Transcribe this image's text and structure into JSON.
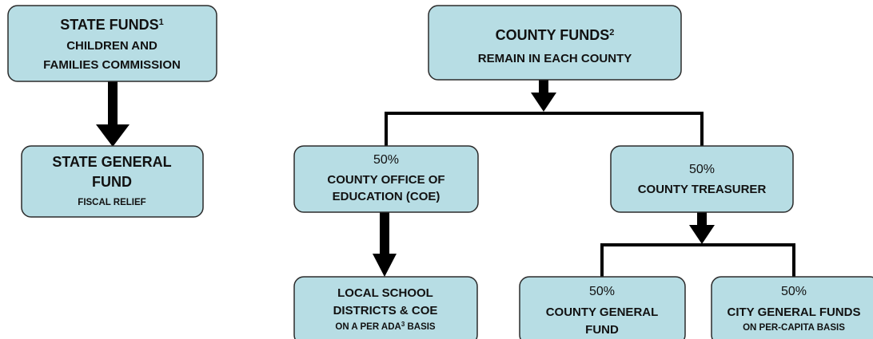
{
  "nodes": [
    {
      "lines": [
        {
          "text": "STATE FUNDS",
          "sup": "1"
        },
        {
          "text": "CHILDREN AND"
        },
        {
          "text": "FAMILIES COMMISSION"
        }
      ]
    },
    {
      "lines": [
        {
          "text": "STATE GENERAL"
        },
        {
          "text": "FUND"
        },
        {
          "text": "FISCAL RELIEF"
        }
      ]
    },
    {
      "lines": [
        {
          "text": "COUNTY FUNDS",
          "sup": "2"
        },
        {
          "text": "REMAIN IN EACH COUNTY"
        }
      ]
    },
    {
      "lines": [
        {
          "text": "50%"
        },
        {
          "text": "COUNTY OFFICE OF"
        },
        {
          "text": "EDUCATION (COE)"
        }
      ]
    },
    {
      "lines": [
        {
          "text": "50%"
        },
        {
          "text": "COUNTY TREASURER"
        }
      ]
    },
    {
      "lines": [
        {
          "text": "LOCAL SCHOOL"
        },
        {
          "text": "DISTRICTS & COE"
        },
        {
          "text": "ON A PER ADA",
          "sup": "3",
          "after": " BASIS"
        }
      ]
    },
    {
      "lines": [
        {
          "text": "50%"
        },
        {
          "text": "COUNTY GENERAL"
        },
        {
          "text": "FUND"
        }
      ]
    },
    {
      "lines": [
        {
          "text": "50%"
        },
        {
          "text": "CITY GENERAL FUNDS"
        },
        {
          "text": "ON PER-CAPITA BASIS"
        }
      ]
    }
  ]
}
